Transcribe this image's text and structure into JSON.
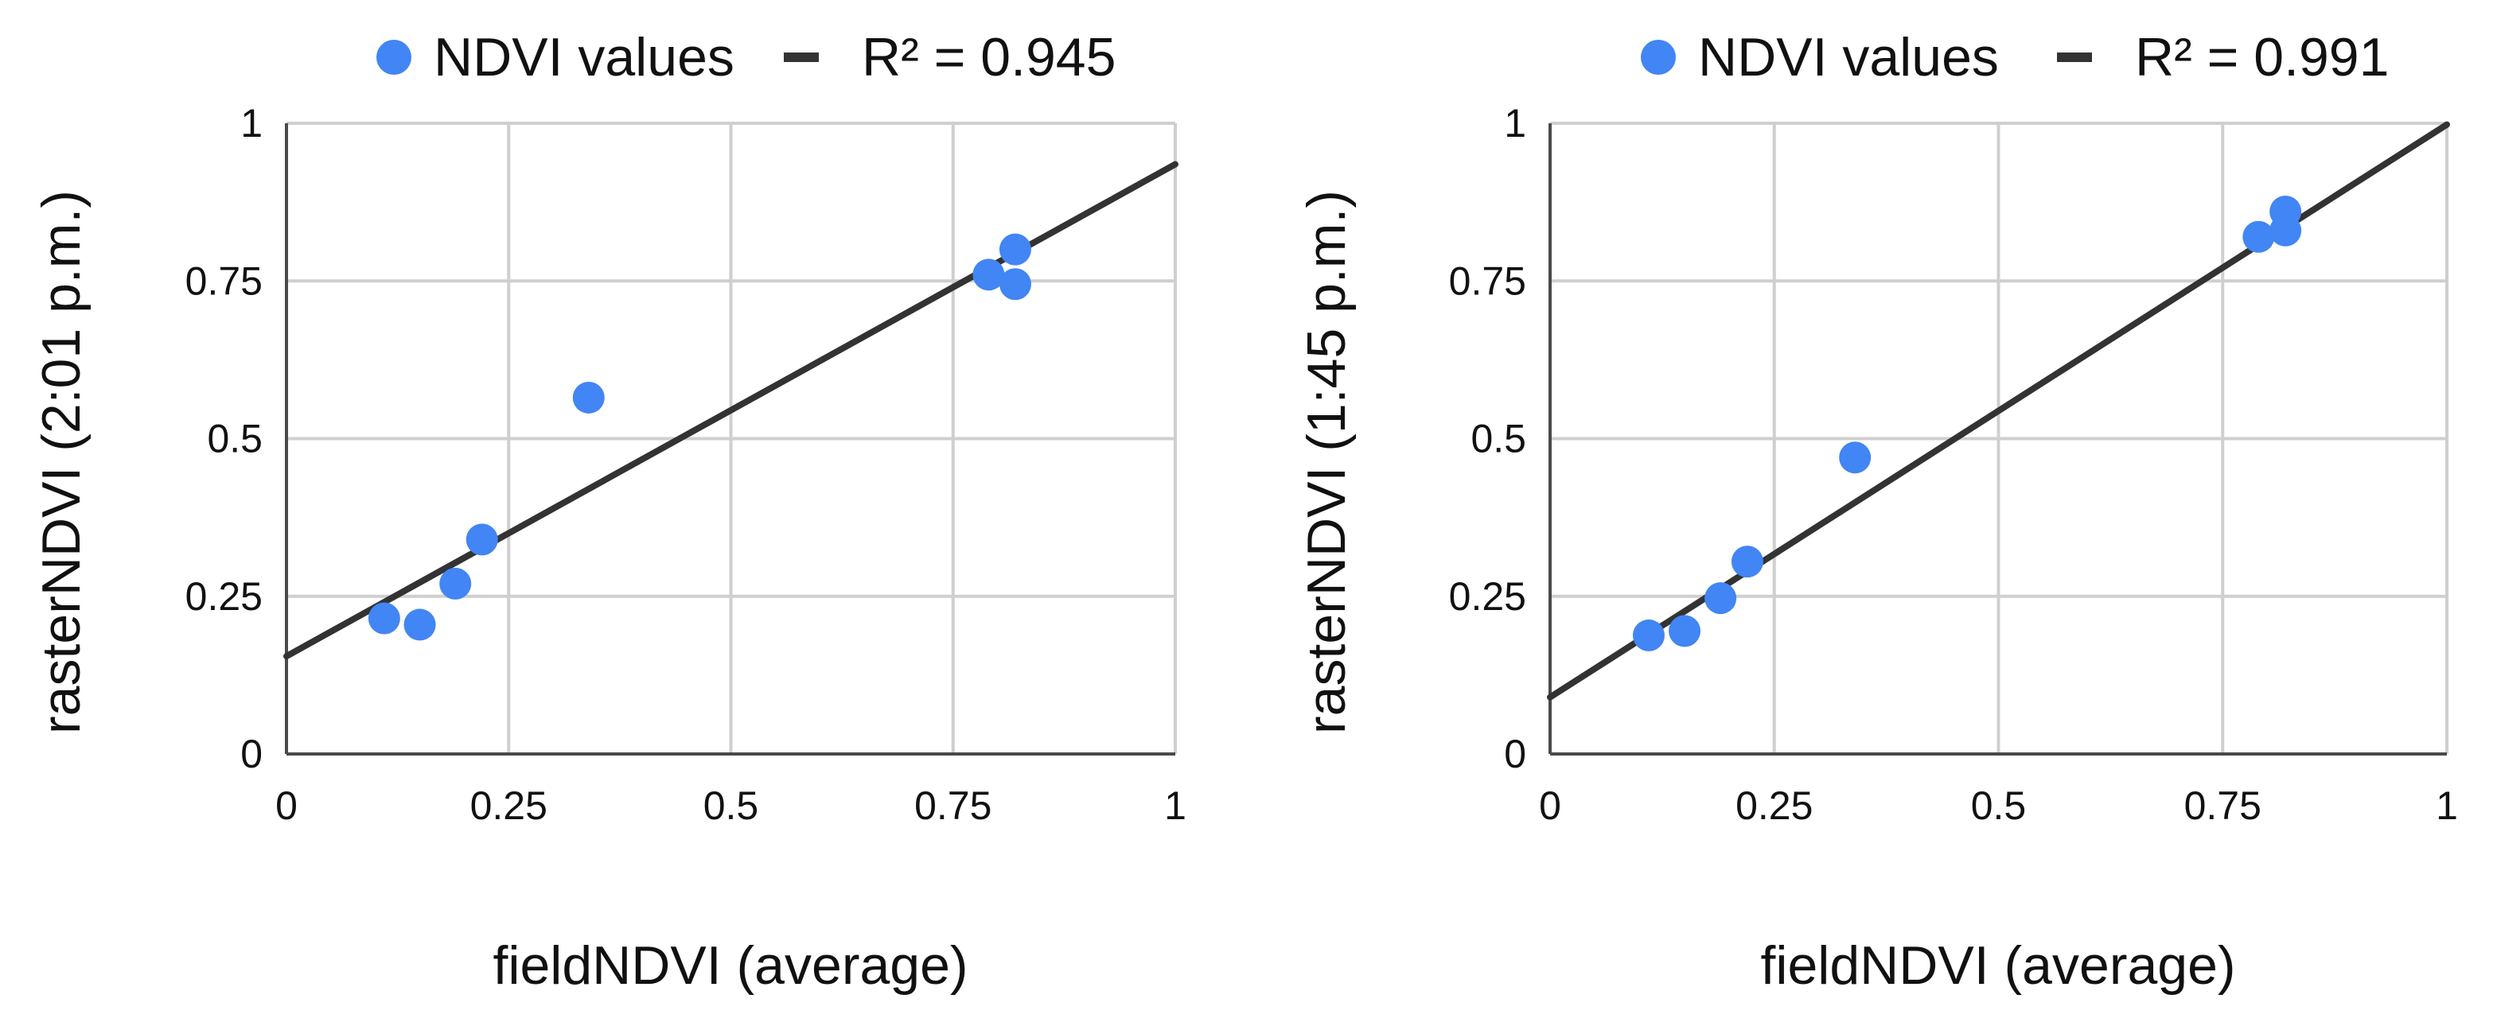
{
  "colors": {
    "points": "#4285f4",
    "trendline": "#333333",
    "grid": "#cfcfcf",
    "axis": "#4a4a4a",
    "text": "#111111"
  },
  "chart_data": [
    {
      "type": "scatter",
      "legend": {
        "series_label": "NDVI values",
        "trend_label": "R² = 0.945"
      },
      "xlabel": "fieldNDVI (average)",
      "ylabel": "rasterNDVI (2:01 p.m.)",
      "xlim": [
        0,
        1
      ],
      "ylim": [
        0,
        1
      ],
      "x_ticks": [
        "0",
        "0.25",
        "0.5",
        "0.75",
        "1"
      ],
      "y_ticks": [
        "0",
        "0.25",
        "0.5",
        "0.75",
        "1"
      ],
      "grid": true,
      "series": [
        {
          "name": "NDVI values",
          "points": [
            {
              "x": 0.11,
              "y": 0.215
            },
            {
              "x": 0.15,
              "y": 0.205
            },
            {
              "x": 0.19,
              "y": 0.27
            },
            {
              "x": 0.22,
              "y": 0.34
            },
            {
              "x": 0.34,
              "y": 0.565
            },
            {
              "x": 0.79,
              "y": 0.76
            },
            {
              "x": 0.82,
              "y": 0.8
            },
            {
              "x": 0.82,
              "y": 0.745
            }
          ]
        }
      ],
      "trendline": {
        "type": "linear",
        "y_at_x0": 0.155,
        "y_at_x1": 0.935,
        "r_squared": 0.945
      }
    },
    {
      "type": "scatter",
      "legend": {
        "series_label": "NDVI values",
        "trend_label": "R² = 0.991"
      },
      "xlabel": "fieldNDVI (average)",
      "ylabel": "rasterNDVI (1:45 p.m.)",
      "xlim": [
        0,
        1
      ],
      "ylim": [
        0,
        1
      ],
      "x_ticks": [
        "0",
        "0.25",
        "0.5",
        "0.75",
        "1"
      ],
      "y_ticks": [
        "0",
        "0.25",
        "0.5",
        "0.75",
        "1"
      ],
      "grid": true,
      "series": [
        {
          "name": "NDVI values",
          "points": [
            {
              "x": 0.11,
              "y": 0.188
            },
            {
              "x": 0.15,
              "y": 0.195
            },
            {
              "x": 0.19,
              "y": 0.247
            },
            {
              "x": 0.22,
              "y": 0.305
            },
            {
              "x": 0.34,
              "y": 0.47
            },
            {
              "x": 0.79,
              "y": 0.82
            },
            {
              "x": 0.82,
              "y": 0.83
            },
            {
              "x": 0.82,
              "y": 0.86
            }
          ]
        }
      ],
      "trendline": {
        "type": "linear",
        "y_at_x0": 0.09,
        "y_at_x1": 0.998,
        "r_squared": 0.991
      }
    }
  ]
}
